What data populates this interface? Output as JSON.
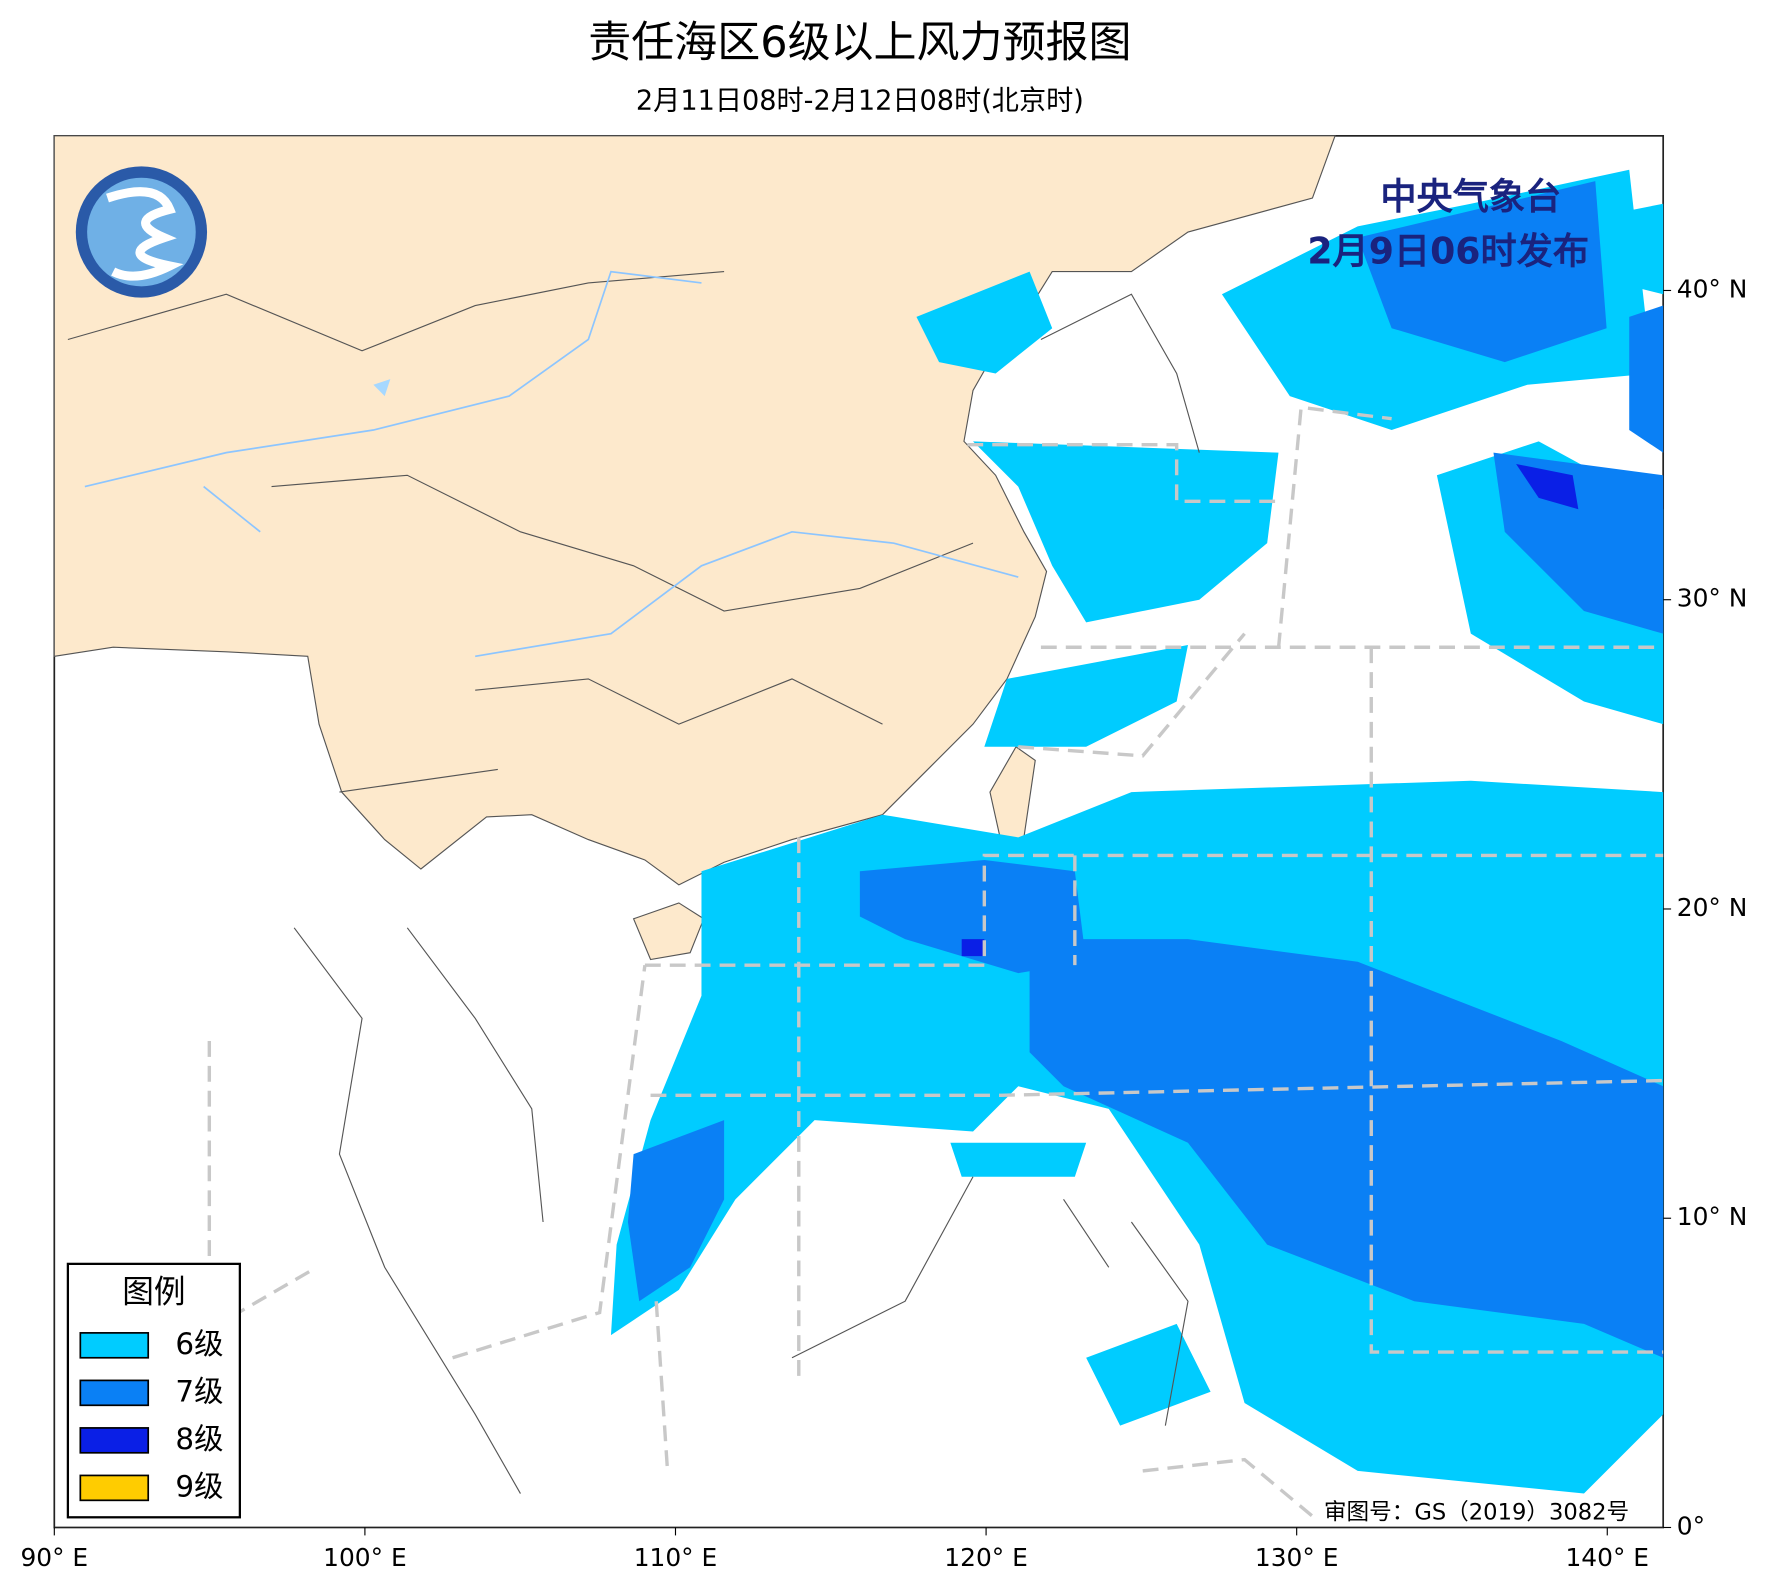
{
  "header": {
    "title": "责任海区6级以上风力预报图",
    "subtitle": "2月11日08时-2月12日08时(北京时)"
  },
  "issuer": {
    "name": "中央气象台",
    "time": "2月9日06时发布"
  },
  "map": {
    "xlim": [
      90,
      141.8
    ],
    "ylim": [
      0,
      45
    ],
    "xticks": [
      {
        "value": 90,
        "label": "90° E"
      },
      {
        "value": 100,
        "label": "100° E"
      },
      {
        "value": 110,
        "label": "110° E"
      },
      {
        "value": 120,
        "label": "120° E"
      },
      {
        "value": 130,
        "label": "130° E"
      },
      {
        "value": 140,
        "label": "140° E"
      }
    ],
    "yticks": [
      {
        "value": 0,
        "label": "0°"
      },
      {
        "value": 10,
        "label": "10° N"
      },
      {
        "value": 20,
        "label": "20° N"
      },
      {
        "value": 30,
        "label": "30° N"
      },
      {
        "value": 40,
        "label": "40° N"
      }
    ]
  },
  "legend": {
    "title": "图例",
    "items": [
      {
        "label": "6级",
        "color": "#00ccff"
      },
      {
        "label": "7级",
        "color": "#0a80f5"
      },
      {
        "label": "8级",
        "color": "#0a1fe6"
      },
      {
        "label": "9级",
        "color": "#ffcc00"
      }
    ]
  },
  "footer": {
    "approval": "审图号：GS（2019）3082号"
  }
}
